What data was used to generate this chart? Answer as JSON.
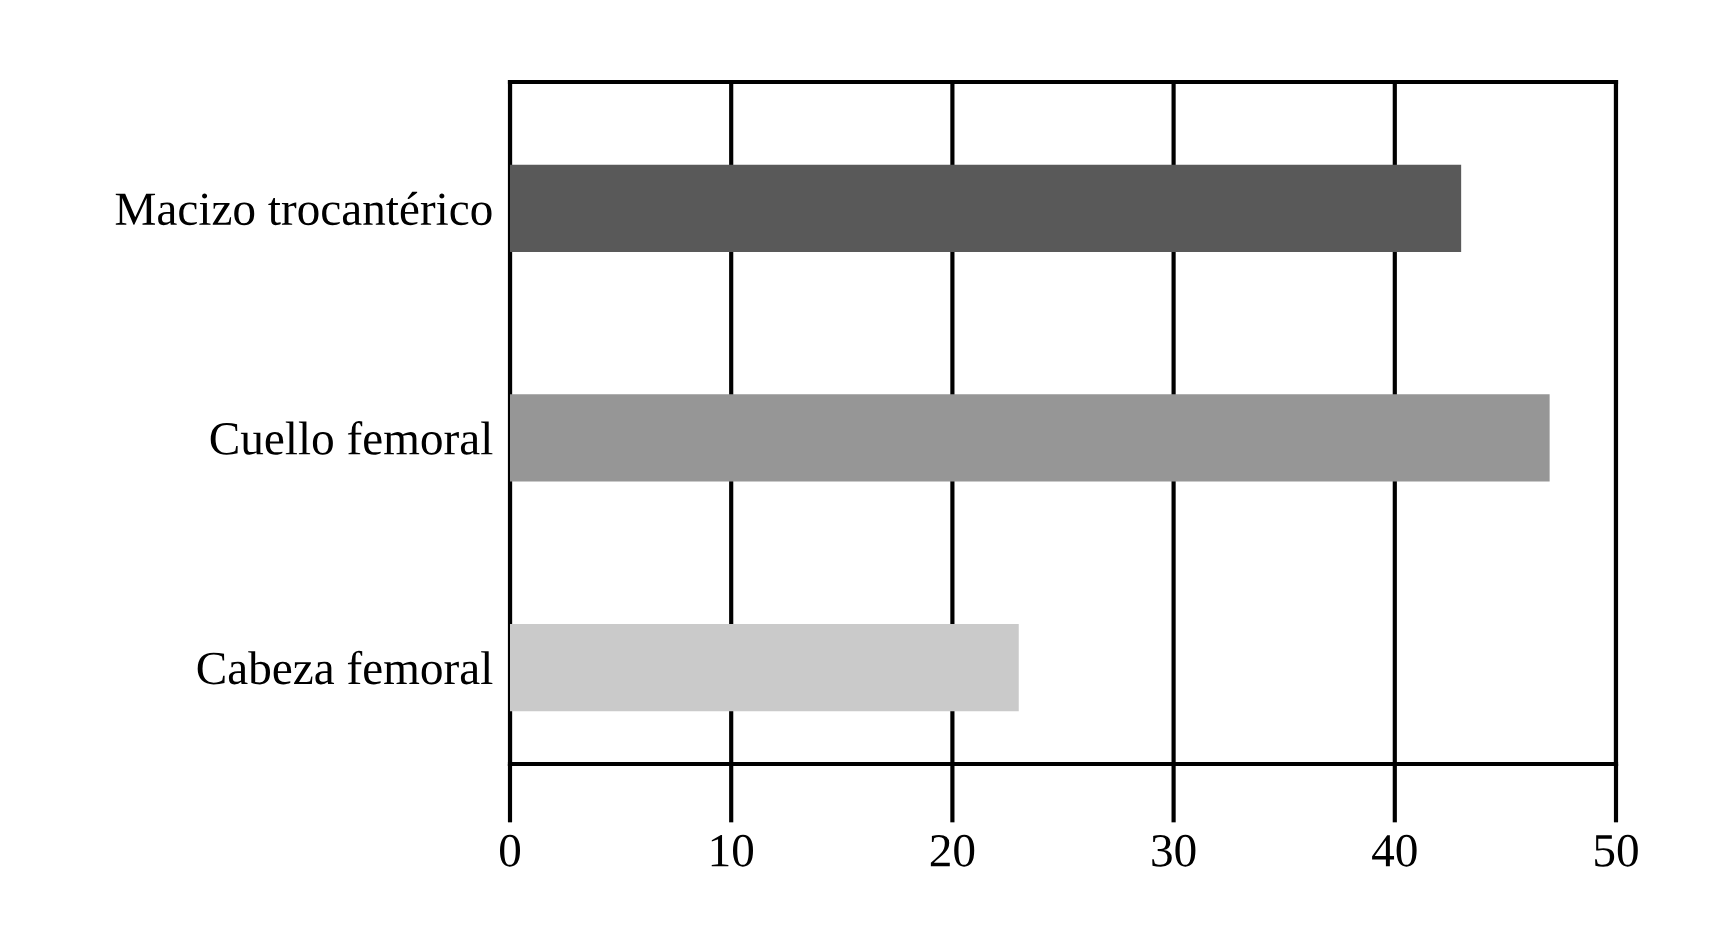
{
  "chart_data": {
    "type": "bar",
    "orientation": "horizontal",
    "categories": [
      "Macizo trocantérico",
      "Cuello femoral",
      "Cabeza femoral"
    ],
    "values": [
      43,
      47,
      23
    ],
    "colors": [
      "#595959",
      "#969696",
      "#cacaca"
    ],
    "xlim": [
      0,
      50
    ],
    "xticks": [
      0,
      10,
      20,
      30,
      40,
      50
    ],
    "grid": "x",
    "legend": false
  }
}
